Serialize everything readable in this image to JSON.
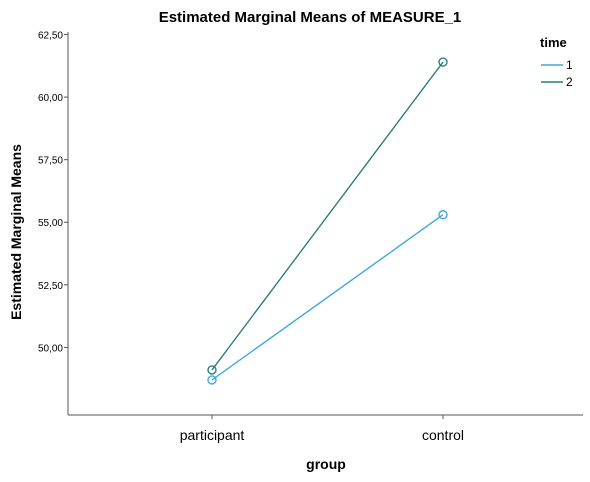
{
  "chart_data": {
    "type": "line",
    "title": "Estimated Marginal Means of MEASURE_1",
    "xlabel": "group",
    "ylabel": "Estimated Marginal Means",
    "categories": [
      "participant",
      "control"
    ],
    "ylim": [
      47.3,
      62.6
    ],
    "yticks": [
      "50,00",
      "52,50",
      "55,00",
      "57,50",
      "60,00",
      "62,50"
    ],
    "ytick_values": [
      50.0,
      52.5,
      55.0,
      57.5,
      60.0,
      62.5
    ],
    "grid": false,
    "legend": {
      "title": "time",
      "position": "top-right"
    },
    "series": [
      {
        "name": "1",
        "color": "#41a8dd",
        "values": [
          48.7,
          55.3
        ]
      },
      {
        "name": "2",
        "color": "#2d7f7a",
        "values": [
          49.1,
          61.4
        ]
      }
    ]
  }
}
